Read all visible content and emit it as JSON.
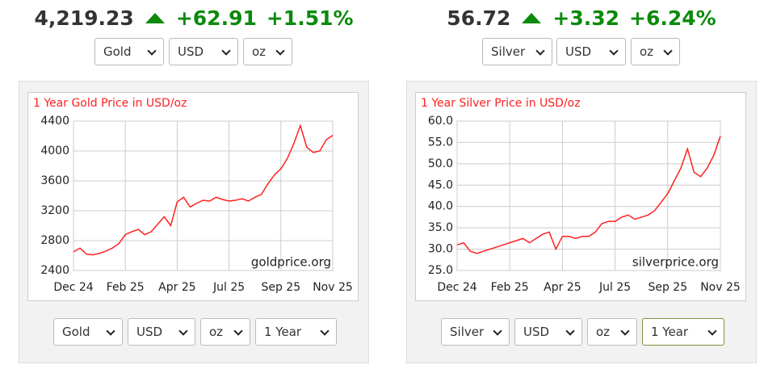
{
  "widgets": [
    {
      "price": "4,219.23",
      "change": "+62.91",
      "percent": "+1.51%",
      "selects": [
        "Gold",
        "USD",
        "oz"
      ],
      "bottom_selects": [
        "Gold",
        "USD",
        "oz",
        "1 Year"
      ]
    },
    {
      "price": "56.72",
      "change": "+3.32",
      "percent": "+6.24%",
      "selects": [
        "Silver",
        "USD",
        "oz"
      ],
      "bottom_selects": [
        "Silver",
        "USD",
        "oz",
        "1 Year"
      ]
    }
  ],
  "chart_data": [
    {
      "type": "line",
      "title": "1 Year Gold Price in USD/oz",
      "watermark": "goldprice.org",
      "color": "#ff2020",
      "grid": true,
      "categories": [
        "Dec 24",
        null,
        null,
        null,
        null,
        null,
        null,
        null,
        "Feb 25",
        null,
        null,
        null,
        null,
        null,
        null,
        null,
        "Apr 25",
        null,
        null,
        null,
        null,
        null,
        null,
        null,
        "Jul 25",
        null,
        null,
        null,
        null,
        null,
        null,
        null,
        "Sep 25",
        null,
        null,
        null,
        null,
        null,
        null,
        null,
        "Nov 25"
      ],
      "values": [
        2650,
        2700,
        2620,
        2610,
        2630,
        2660,
        2700,
        2760,
        2880,
        2920,
        2950,
        2880,
        2920,
        3020,
        3120,
        3000,
        3320,
        3380,
        3250,
        3300,
        3340,
        3330,
        3380,
        3350,
        3330,
        3340,
        3360,
        3330,
        3380,
        3420,
        3560,
        3680,
        3760,
        3900,
        4100,
        4340,
        4050,
        3980,
        4000,
        4150,
        4210
      ],
      "ylim": [
        2400,
        4400
      ],
      "yticks": [
        2400,
        2800,
        3200,
        3600,
        4000,
        4400
      ]
    },
    {
      "type": "line",
      "title": "1 Year Silver Price in USD/oz",
      "watermark": "silverprice.org",
      "color": "#ff2020",
      "grid": true,
      "categories": [
        "Dec 24",
        null,
        null,
        null,
        null,
        null,
        null,
        null,
        "Feb 25",
        null,
        null,
        null,
        null,
        null,
        null,
        null,
        "Apr 25",
        null,
        null,
        null,
        null,
        null,
        null,
        null,
        "Jul 25",
        null,
        null,
        null,
        null,
        null,
        null,
        null,
        "Sep 25",
        null,
        null,
        null,
        null,
        null,
        null,
        null,
        "Nov 25"
      ],
      "values": [
        31,
        31.5,
        29.5,
        29,
        29.5,
        30,
        30.5,
        31,
        31.5,
        32,
        32.5,
        31.5,
        32.5,
        33.5,
        34,
        30,
        33,
        33,
        32.5,
        33,
        33,
        34,
        36,
        36.5,
        36.5,
        37.5,
        38,
        37,
        37.5,
        38,
        39,
        41,
        43,
        46,
        49,
        53.5,
        48,
        47,
        49,
        52,
        56.5
      ],
      "ylim": [
        25,
        60
      ],
      "yticks": [
        {
          "value": 25,
          "label": "25.0"
        },
        {
          "value": 30,
          "label": "30.0"
        },
        {
          "value": 35,
          "label": "35.0"
        },
        {
          "value": 40,
          "label": "40.0"
        },
        {
          "value": 45,
          "label": "45.0"
        },
        {
          "value": 50,
          "label": "50.0"
        },
        {
          "value": 55,
          "label": "55.0"
        },
        {
          "value": 60,
          "label": "60.0"
        }
      ]
    }
  ]
}
